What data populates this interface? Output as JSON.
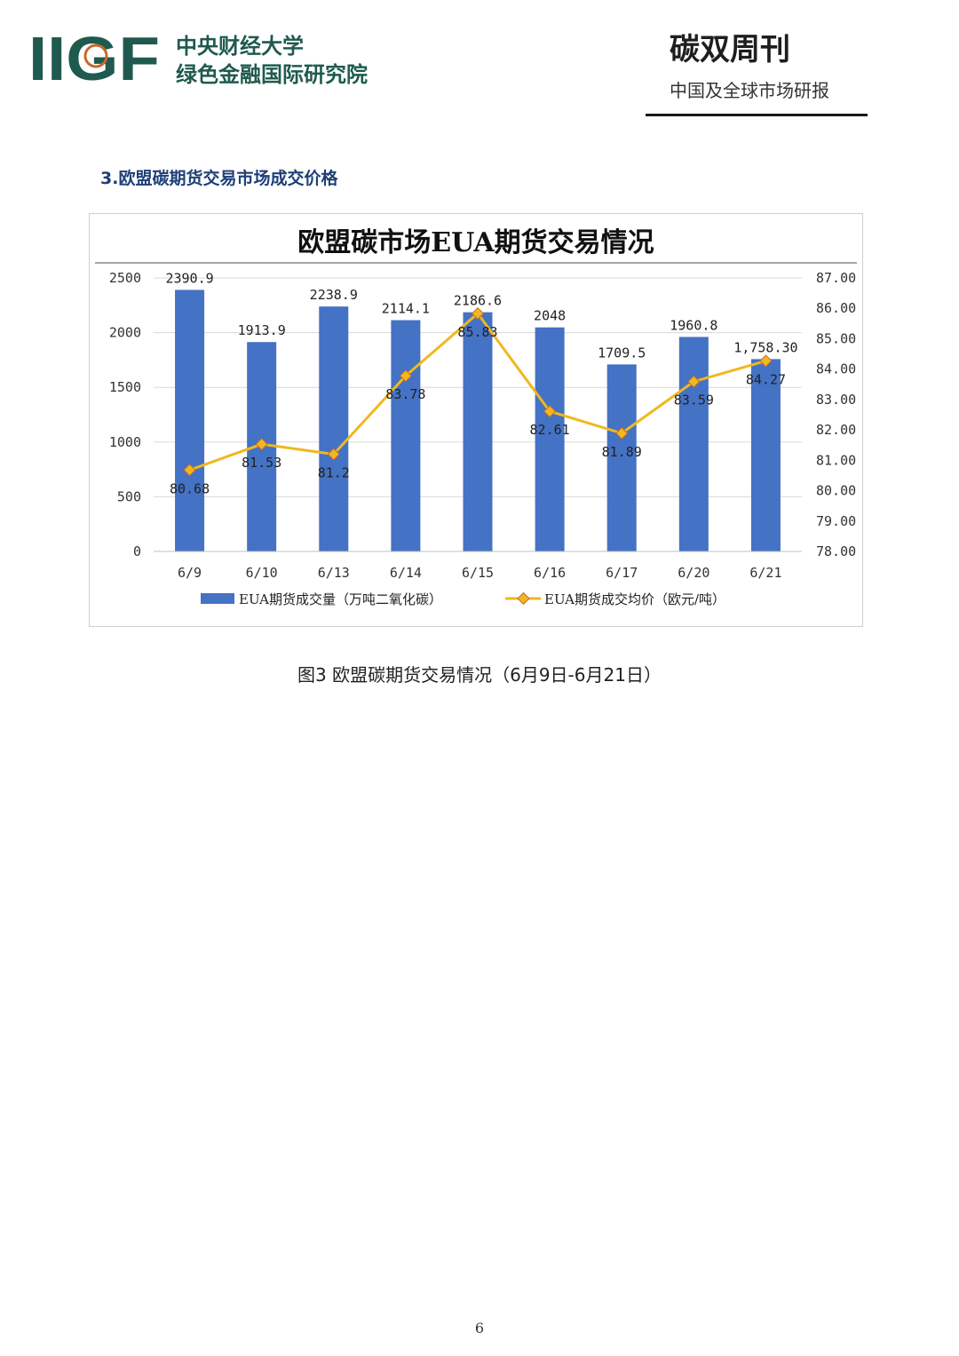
{
  "header": {
    "logo_text": "IIGF",
    "org_name_line1": "中央财经大学",
    "org_name_line2": "绿色金融国际研究院",
    "publication_title": "碳双周刊",
    "publication_subtitle": "中国及全球市场研报"
  },
  "section": {
    "heading": "3.欧盟碳期货交易市场成交价格"
  },
  "figure": {
    "caption": "图3 欧盟碳期货交易情况（6月9日-6月21日）"
  },
  "page": {
    "number": "6"
  },
  "colors": {
    "bar": "#4472C4",
    "line": "#F0B81F",
    "logo_green": "#1f5a4e",
    "logo_accent": "#c8692e",
    "heading_blue": "#1f3f78"
  },
  "chart_data": {
    "type": "bar+line",
    "title": "欧盟碳市场EUA期货交易情况",
    "categories": [
      "6/9",
      "6/10",
      "6/13",
      "6/14",
      "6/15",
      "6/16",
      "6/17",
      "6/20",
      "6/21"
    ],
    "series": [
      {
        "name": "EUA期货成交量（万吨二氧化碳）",
        "type": "bar",
        "axis": "left",
        "values": [
          2390.9,
          1913.9,
          2238.9,
          2114.1,
          2186.6,
          2048,
          1709.5,
          1960.8,
          1758.3
        ],
        "labels": [
          "2390.9",
          "1913.9",
          "2238.9",
          "2114.1",
          "2186.6",
          "2048",
          "1709.5",
          "1960.8",
          "1,758.30"
        ]
      },
      {
        "name": "EUA期货成交均价（欧元/吨）",
        "type": "line",
        "axis": "right",
        "values": [
          80.68,
          81.53,
          81.2,
          83.78,
          85.83,
          82.61,
          81.89,
          83.59,
          84.27
        ],
        "labels": [
          "80.68",
          "81.53",
          "81.2",
          "83.78",
          "85.83",
          "82.61",
          "81.89",
          "83.59",
          "84.27"
        ]
      }
    ],
    "y_left": {
      "range": [
        0,
        2500
      ],
      "ticks": [
        "0",
        "500",
        "1000",
        "1500",
        "2000",
        "2500"
      ]
    },
    "y_right": {
      "range": [
        78,
        87
      ],
      "ticks": [
        "78.00",
        "79.00",
        "80.00",
        "81.00",
        "82.00",
        "83.00",
        "84.00",
        "85.00",
        "86.00",
        "87.00"
      ]
    },
    "grid": true,
    "legend_position": "bottom"
  }
}
